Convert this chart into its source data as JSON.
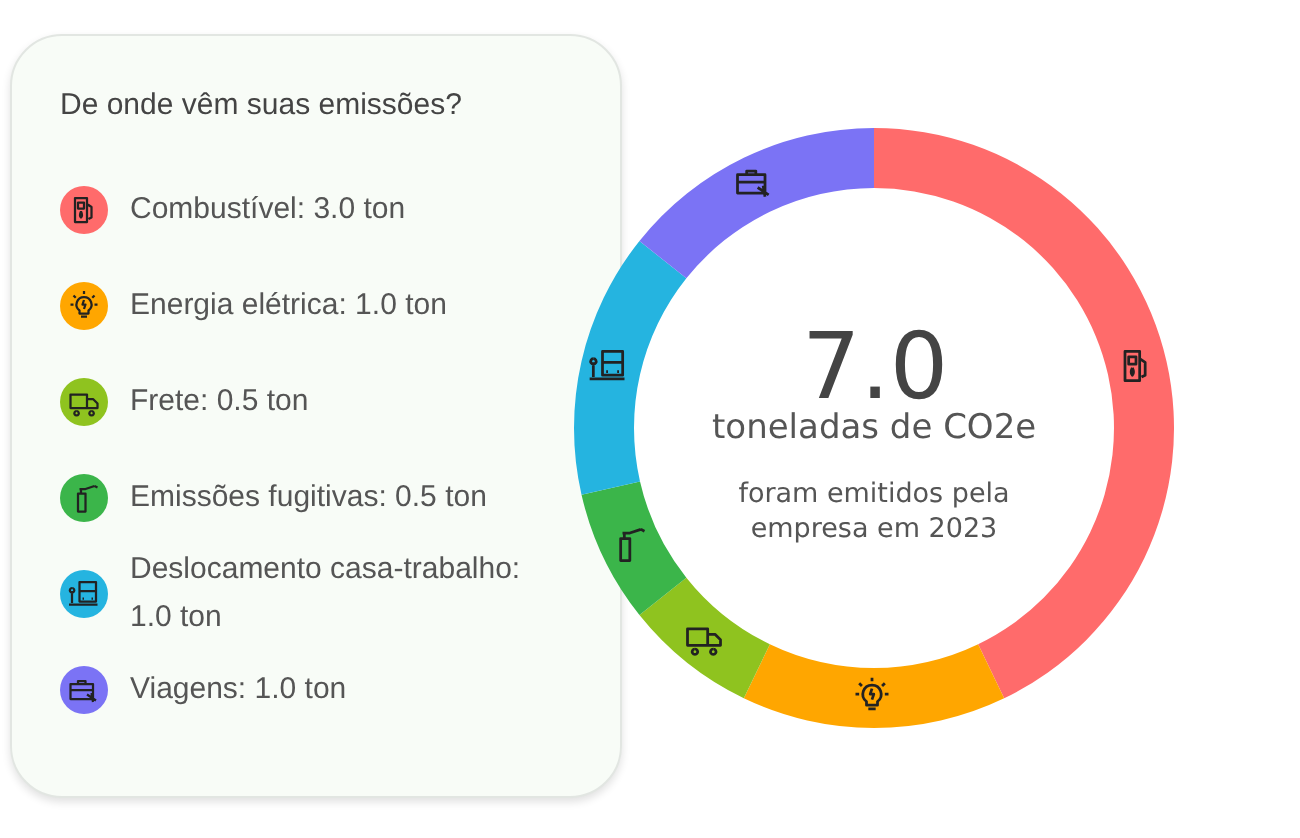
{
  "chart_data": {
    "type": "donut",
    "legend_title": "De onde vêm suas emissões?",
    "categories": [
      "Combustível: 3.0 ton",
      "Energia elétrica: 1.0 ton",
      "Frete: 0.5 ton",
      "Emissões fugitivas: 0.5 ton",
      "Deslocamento casa-trabalho: 1.0 ton",
      "Viagens: 1.0 ton"
    ],
    "values": [
      3.0,
      1.0,
      0.5,
      0.5,
      1.0,
      1.0
    ],
    "colors": [
      "#ff6b6b",
      "#ffa600",
      "#8fc31f",
      "#3bb54a",
      "#25b4e0",
      "#7b73f5"
    ],
    "annotations": [
      "7.0",
      "toneladas de CO2e",
      "foram emitidos pela empresa em 2023"
    ],
    "legend": "left"
  }
}
